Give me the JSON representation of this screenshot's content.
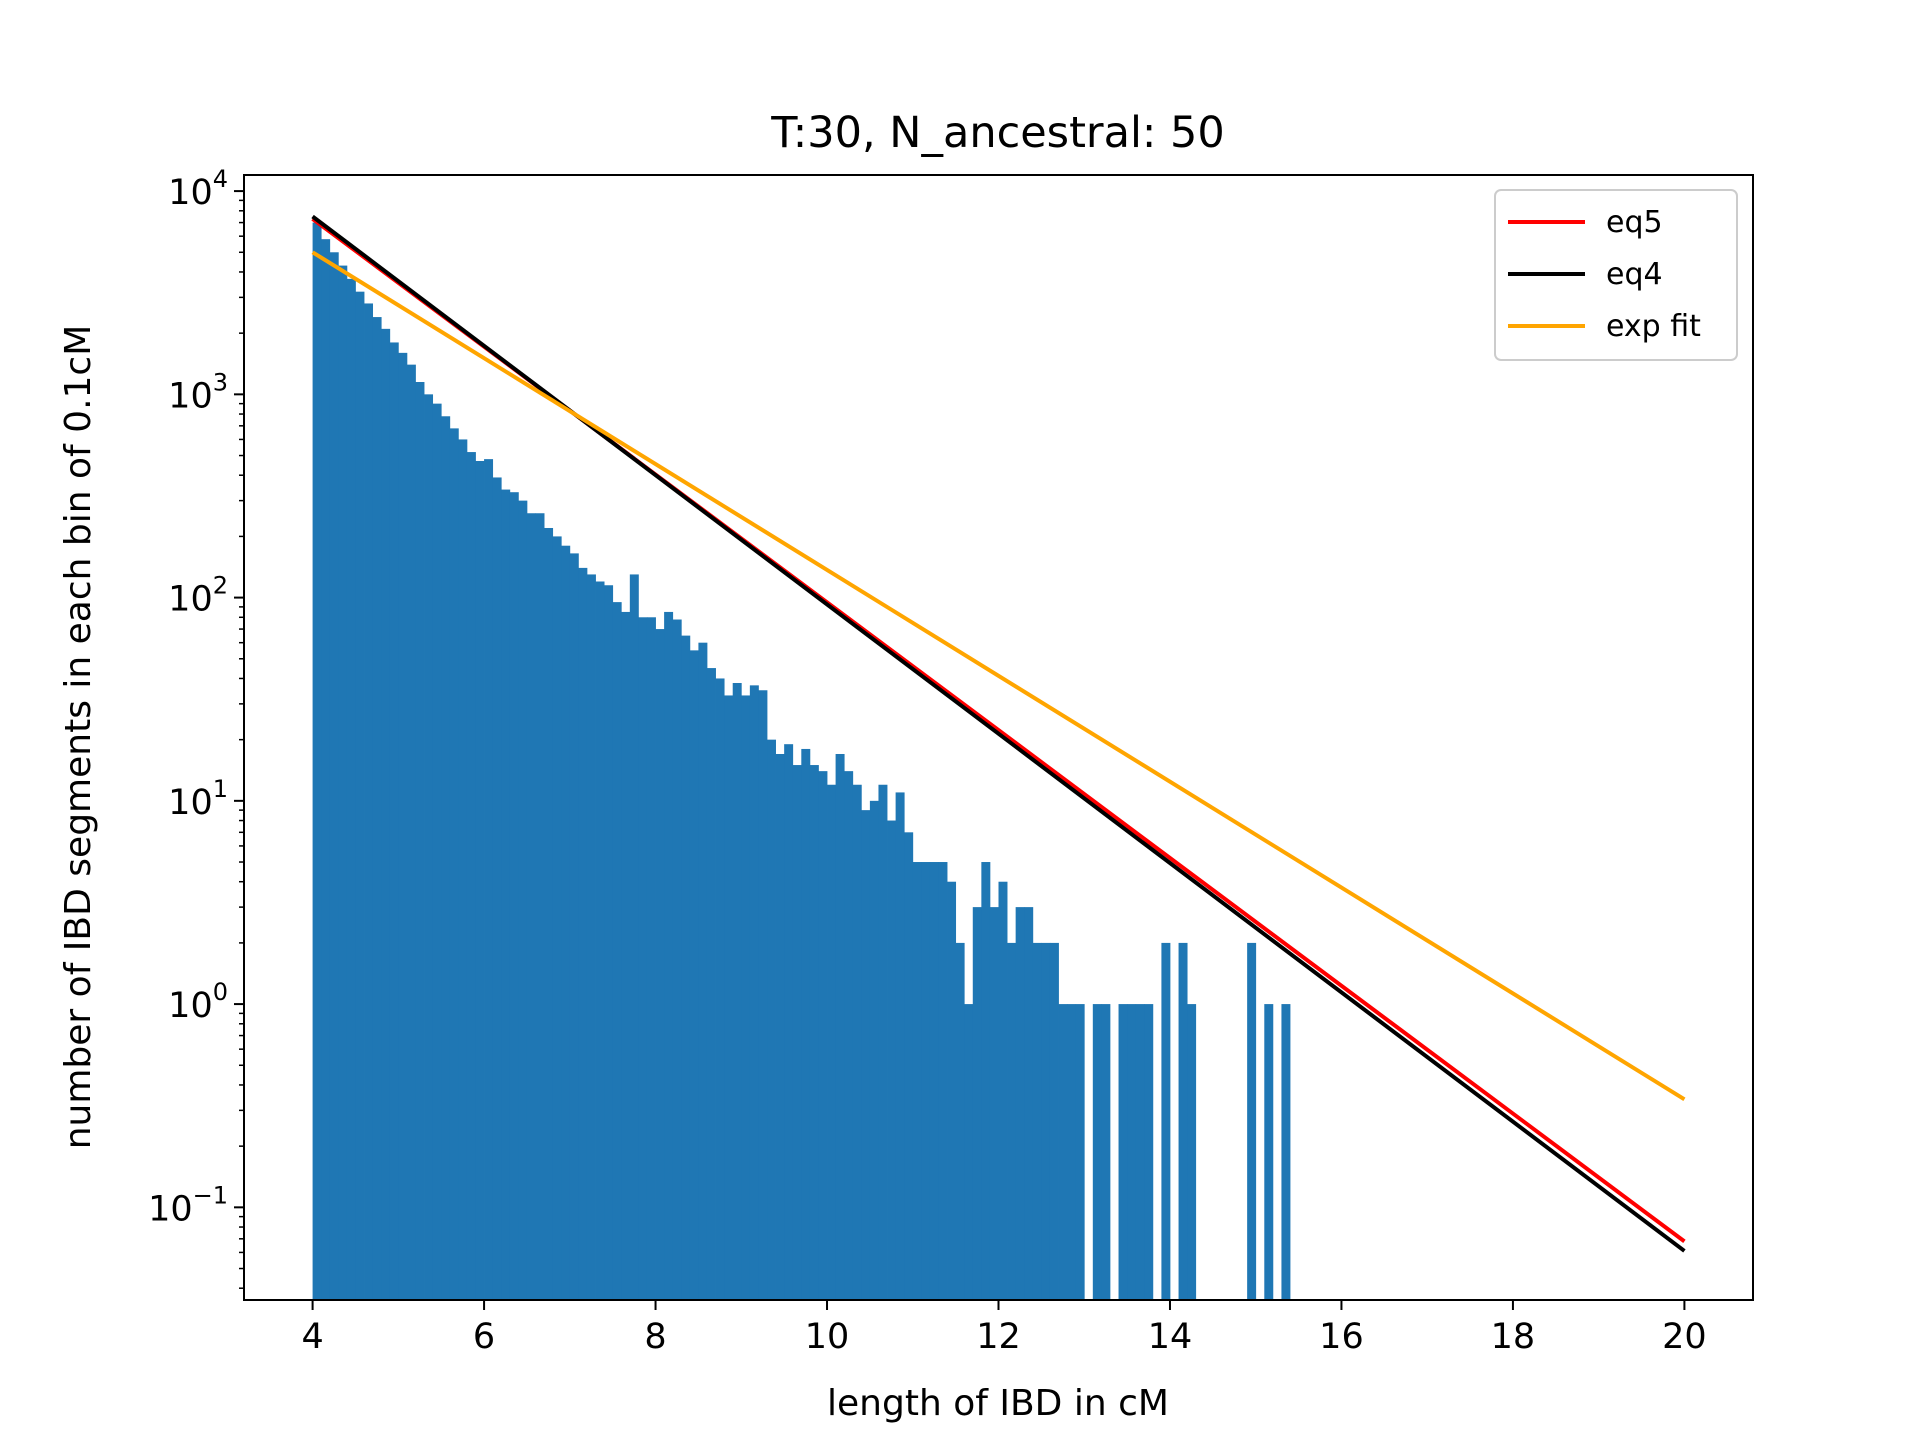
{
  "chart_data": {
    "type": "bar",
    "title": "T:30, N_ancestral: 50",
    "xlabel": "length of IBD in cM",
    "ylabel": "number of IBD segments in each bin of 0.1cM",
    "xscale": "linear",
    "yscale": "log",
    "xlim": [
      3.2,
      20.8
    ],
    "ylim": [
      0.035,
      12000
    ],
    "grid": false,
    "legend_position": "top-right",
    "xticks": [
      {
        "value": 4,
        "label": "4"
      },
      {
        "value": 6,
        "label": "6"
      },
      {
        "value": 8,
        "label": "8"
      },
      {
        "value": 10,
        "label": "10"
      },
      {
        "value": 12,
        "label": "12"
      },
      {
        "value": 14,
        "label": "14"
      },
      {
        "value": 16,
        "label": "16"
      },
      {
        "value": 18,
        "label": "18"
      },
      {
        "value": 20,
        "label": "20"
      }
    ],
    "yticks": [
      {
        "value": 0.1,
        "base": "10",
        "exp": "−1"
      },
      {
        "value": 1,
        "base": "10",
        "exp": "0"
      },
      {
        "value": 10,
        "base": "10",
        "exp": "1"
      },
      {
        "value": 100,
        "base": "10",
        "exp": "2"
      },
      {
        "value": 1000,
        "base": "10",
        "exp": "3"
      },
      {
        "value": 10000,
        "base": "10",
        "exp": "4"
      }
    ],
    "histogram": {
      "name": "IBD segment counts",
      "color": "#1f77b4",
      "bin_width": 0.1,
      "bin_start": 4.0,
      "values": [
        7000,
        5800,
        5000,
        4300,
        3700,
        3200,
        2800,
        2400,
        2100,
        1800,
        1600,
        1400,
        1150,
        1000,
        900,
        780,
        680,
        600,
        520,
        470,
        480,
        390,
        340,
        330,
        300,
        260,
        260,
        220,
        200,
        180,
        165,
        140,
        130,
        120,
        115,
        95,
        85,
        130,
        80,
        80,
        70,
        85,
        78,
        65,
        55,
        60,
        45,
        40,
        33,
        38,
        33,
        37,
        35,
        20,
        17,
        19,
        15,
        18,
        15,
        14,
        12,
        17,
        14,
        12,
        9,
        10,
        12,
        8,
        11,
        7,
        5,
        5,
        5,
        5,
        4,
        2,
        1,
        3,
        5,
        3,
        4,
        2,
        3,
        3,
        2,
        2,
        2,
        1,
        1,
        1,
        0,
        1,
        1,
        0,
        1,
        1,
        1,
        1,
        0,
        2,
        0,
        2,
        1,
        0,
        0,
        0,
        0,
        0,
        0,
        2,
        0,
        1,
        0,
        1
      ]
    },
    "series": [
      {
        "name": "eq5",
        "type": "line",
        "color": "#ff0000",
        "x": [
          4,
          20
        ],
        "y": [
          7300,
          0.068
        ]
      },
      {
        "name": "eq4",
        "type": "line",
        "color": "#000000",
        "x": [
          4,
          20
        ],
        "y": [
          7500,
          0.061
        ]
      },
      {
        "name": "exp fit",
        "type": "line",
        "color": "#ffa500",
        "x": [
          4,
          20
        ],
        "y": [
          5000,
          0.34
        ]
      }
    ]
  }
}
